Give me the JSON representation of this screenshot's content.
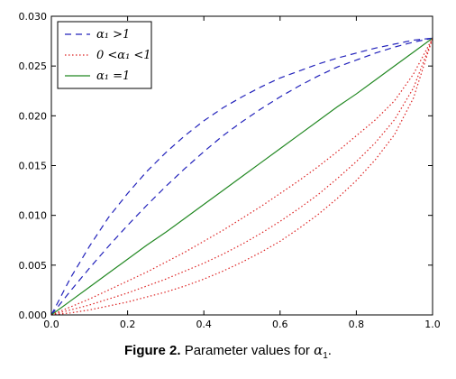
{
  "chart_data": {
    "type": "line",
    "title": "",
    "xlabel": "",
    "ylabel": "",
    "xlim": [
      0.0,
      1.0
    ],
    "ylim": [
      0.0,
      0.03
    ],
    "x_ticks": [
      "0.0",
      "0.2",
      "0.4",
      "0.6",
      "0.8",
      "1.0"
    ],
    "y_ticks": [
      "0.000",
      "0.005",
      "0.010",
      "0.015",
      "0.020",
      "0.025",
      "0.030"
    ],
    "grid": false,
    "legend_position": "top-left",
    "legend": [
      {
        "label": "α₁ >1",
        "color": "#2222bb",
        "style": "dashed"
      },
      {
        "label": "0 <α₁ <1",
        "color": "#dd2222",
        "style": "dotted"
      },
      {
        "label": "α₁ =1",
        "color": "#228822",
        "style": "solid"
      }
    ],
    "x": [
      0.0,
      0.05,
      0.1,
      0.15,
      0.2,
      0.25,
      0.3,
      0.35,
      0.4,
      0.45,
      0.5,
      0.55,
      0.6,
      0.65,
      0.7,
      0.75,
      0.8,
      0.85,
      0.9,
      0.95,
      1.0
    ],
    "series": [
      {
        "group": "gt1",
        "color": "#2222bb",
        "style": "dashed",
        "values": [
          0.0,
          0.0037,
          0.0069,
          0.0098,
          0.0122,
          0.0144,
          0.0163,
          0.018,
          0.0195,
          0.0208,
          0.0219,
          0.0229,
          0.0238,
          0.0245,
          0.0252,
          0.0258,
          0.0263,
          0.0268,
          0.0272,
          0.0276,
          0.0278
        ]
      },
      {
        "group": "gt1",
        "color": "#2222bb",
        "style": "dashed",
        "values": [
          0.0,
          0.0024,
          0.0047,
          0.0069,
          0.009,
          0.011,
          0.0129,
          0.0147,
          0.0164,
          0.018,
          0.0194,
          0.0207,
          0.0219,
          0.023,
          0.024,
          0.0249,
          0.0256,
          0.0263,
          0.0269,
          0.0274,
          0.0278
        ]
      },
      {
        "group": "eq1",
        "color": "#228822",
        "style": "solid",
        "values": [
          0.0,
          0.0014,
          0.0028,
          0.0042,
          0.0056,
          0.007,
          0.0083,
          0.0097,
          0.0111,
          0.0125,
          0.0139,
          0.0153,
          0.0167,
          0.0181,
          0.0195,
          0.0209,
          0.0222,
          0.0236,
          0.025,
          0.0264,
          0.0278
        ]
      },
      {
        "group": "lt1",
        "color": "#dd2222",
        "style": "dotted",
        "values": [
          0.0,
          0.0008,
          0.0016,
          0.0025,
          0.0034,
          0.0043,
          0.0053,
          0.0063,
          0.0074,
          0.0085,
          0.0097,
          0.0109,
          0.0122,
          0.0135,
          0.0149,
          0.0164,
          0.018,
          0.0196,
          0.0215,
          0.0242,
          0.0278
        ]
      },
      {
        "group": "lt1",
        "color": "#dd2222",
        "style": "dotted",
        "values": [
          0.0,
          0.0005,
          0.001,
          0.0016,
          0.0022,
          0.0029,
          0.0036,
          0.0044,
          0.0052,
          0.0061,
          0.0071,
          0.0082,
          0.0094,
          0.0107,
          0.0121,
          0.0137,
          0.0154,
          0.0173,
          0.0196,
          0.0228,
          0.0278
        ]
      },
      {
        "group": "lt1",
        "color": "#dd2222",
        "style": "dotted",
        "values": [
          0.0,
          0.0002,
          0.0005,
          0.0009,
          0.0013,
          0.0018,
          0.0023,
          0.0029,
          0.0036,
          0.0044,
          0.0053,
          0.0063,
          0.0074,
          0.0087,
          0.0101,
          0.0117,
          0.0135,
          0.0156,
          0.0181,
          0.0218,
          0.0278
        ]
      }
    ]
  },
  "caption": {
    "lead": "Figure 2.",
    "text": " Parameter values for ",
    "symbol": "α",
    "subscript": "1",
    "end": "."
  }
}
